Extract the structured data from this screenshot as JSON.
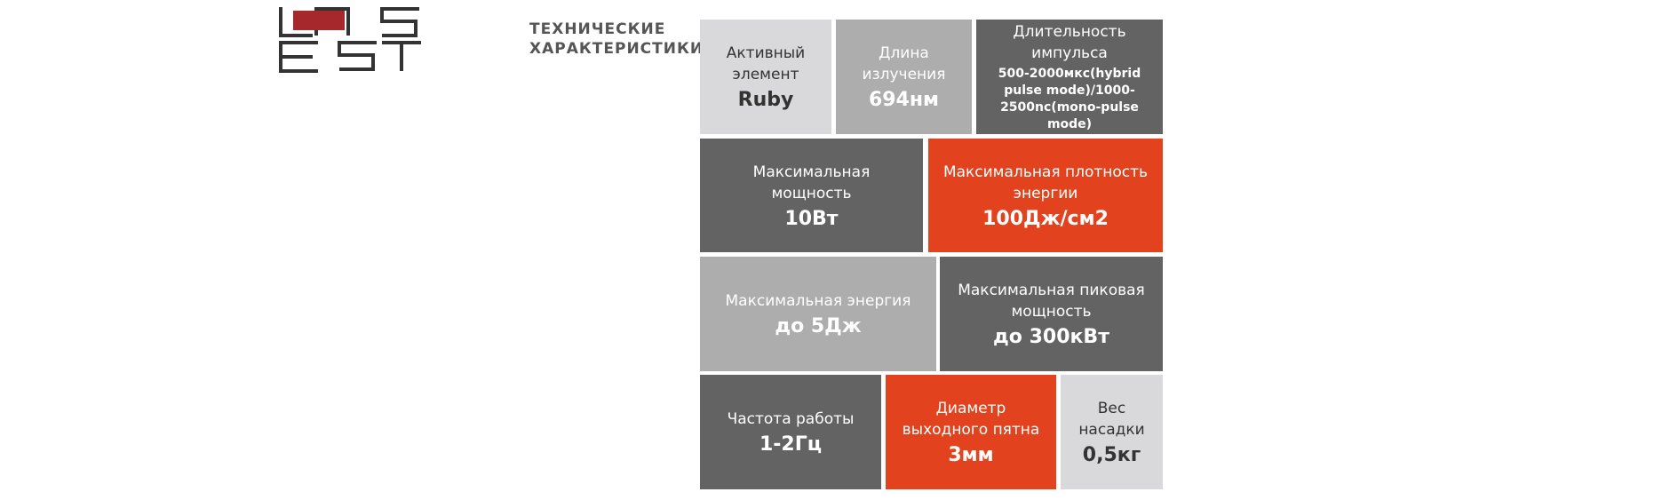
{
  "header": {
    "title": "ТЕХНИЧЕСКИЕ ХАРАКТЕРИСТИКИ"
  },
  "specs": {
    "rows": [
      [
        {
          "label": "Активный элемент",
          "value": "Ruby"
        },
        {
          "label": "Длина излучения",
          "value": "694нм"
        },
        {
          "label": "Длительность импульса",
          "value": "500-2000мкс(hybrid pulse mode)/1000-2500nc(mono-pulse mode)"
        }
      ],
      [
        {
          "label": "Максимальная мощность",
          "value": "10Вт"
        },
        {
          "label": "Максимальная плотность энергии",
          "value": "100Дж/см2"
        }
      ],
      [
        {
          "label": "Максимальная энергия",
          "value": "до 5Дж"
        },
        {
          "label": "Максимальная пиковая мощность",
          "value": "до 300кВт"
        }
      ],
      [
        {
          "label": "Частота работы",
          "value": "1-2Гц"
        },
        {
          "label": "Диаметр выходного пятна",
          "value": "3мм"
        },
        {
          "label": "Вес насадки",
          "value": "0,5кг"
        }
      ]
    ]
  }
}
